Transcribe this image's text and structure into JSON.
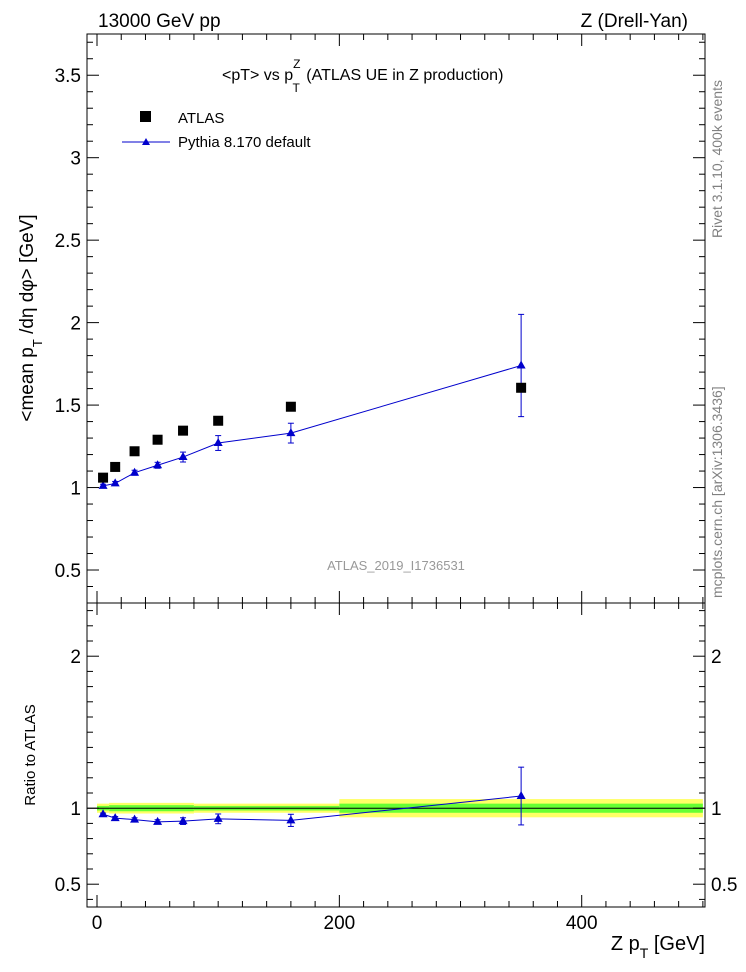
{
  "header": {
    "left": "13000 GeV pp",
    "right": "Z (Drell-Yan)"
  },
  "side_labels": {
    "rivet": "Rivet 3.1.10,  400k events",
    "mcplots": "mcplots.cern.ch [arXiv:1306.3436]"
  },
  "watermark": "ATLAS_2019_I1736531",
  "colors": {
    "mc": "#0000cc",
    "data": "#000000",
    "band_inner": "#66ff33",
    "band_outer": "#ffff66",
    "axis": "#000000",
    "side_text": "#808080"
  },
  "chart_data": [
    {
      "type": "scatter",
      "panel": "main",
      "title_parts": {
        "pre": "<pT> vs p",
        "sup": "Z",
        "sub": "T",
        "post": " (ATLAS UE in Z production)"
      },
      "ylabel_parts": {
        "a": "<mean p",
        "sub": "T",
        "b": " /dη dφ> [GeV]"
      },
      "xlim": [
        0,
        510
      ],
      "ylim": [
        0.3,
        3.75
      ],
      "yticks": [
        0.5,
        1,
        1.5,
        2,
        2.5,
        3,
        3.5
      ],
      "ytick_labels": [
        "0.5",
        "1",
        "1.5",
        "2",
        "2.5",
        "3",
        "3.5"
      ],
      "legend_position": "top-left",
      "series": [
        {
          "name": "ATLAS",
          "marker": "square",
          "x": [
            5,
            15,
            31,
            50,
            71,
            100,
            160,
            350
          ],
          "y": [
            1.06,
            1.125,
            1.22,
            1.29,
            1.345,
            1.405,
            1.49,
            1.605
          ]
        },
        {
          "name": "Pythia 8.170 default",
          "marker": "triangle",
          "x": [
            5,
            15,
            31,
            50,
            71,
            100,
            160,
            350
          ],
          "y": [
            1.01,
            1.025,
            1.09,
            1.135,
            1.185,
            1.27,
            1.33,
            1.74
          ],
          "err": [
            0.01,
            0.012,
            0.015,
            0.018,
            0.03,
            0.045,
            0.06,
            0.31
          ]
        }
      ]
    },
    {
      "type": "line",
      "panel": "ratio",
      "ylabel": "Ratio to ATLAS",
      "xlabel_parts": {
        "a": "Z p",
        "sub": "T",
        "b": " [GeV]"
      },
      "xlim": [
        0,
        510
      ],
      "ylim": [
        0.35,
        2.35
      ],
      "xticks": [
        0,
        200,
        400
      ],
      "xtick_labels": [
        "0",
        "200",
        "400"
      ],
      "yticks": [
        0.5,
        1,
        2
      ],
      "ytick_labels": [
        "0.5",
        "1",
        "2"
      ],
      "band": [
        {
          "x0": 0,
          "x1": 10,
          "inner": 0.015,
          "outer": 0.03
        },
        {
          "x0": 10,
          "x1": 80,
          "inner": 0.02,
          "outer": 0.035
        },
        {
          "x0": 80,
          "x1": 200,
          "inner": 0.015,
          "outer": 0.03
        },
        {
          "x0": 200,
          "x1": 500,
          "inner": 0.03,
          "outer": 0.06
        }
      ],
      "series": [
        {
          "name": "Pythia 8.170 default",
          "x": [
            5,
            15,
            31,
            50,
            71,
            100,
            160,
            350
          ],
          "y": [
            0.96,
            0.935,
            0.925,
            0.91,
            0.915,
            0.93,
            0.92,
            1.08
          ],
          "err": [
            0.008,
            0.01,
            0.012,
            0.014,
            0.022,
            0.032,
            0.04,
            0.19
          ]
        }
      ]
    }
  ]
}
